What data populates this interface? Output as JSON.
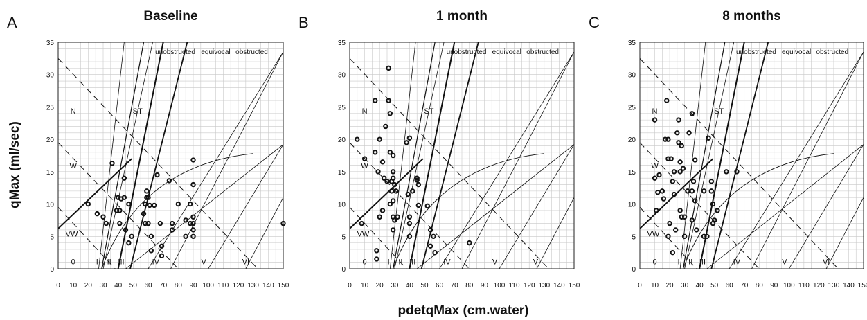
{
  "figure": {
    "ylabel": "qMax (ml/sec)",
    "xlabel": "pdetqMax (cm.water)"
  },
  "chart_data": [
    {
      "type": "scatter",
      "letter": "A",
      "title": "Baseline",
      "xlim": [
        0,
        150
      ],
      "ylim": [
        0,
        35
      ],
      "xticks": [
        0,
        10,
        20,
        30,
        40,
        50,
        60,
        70,
        80,
        90,
        100,
        110,
        120,
        130,
        140,
        150
      ],
      "yticks": [
        0,
        5,
        10,
        15,
        20,
        25,
        30,
        35
      ],
      "grid": true,
      "points": [
        [
          20,
          10
        ],
        [
          26,
          8.5
        ],
        [
          30,
          8
        ],
        [
          32,
          7
        ],
        [
          36,
          16.3
        ],
        [
          39,
          9
        ],
        [
          40,
          11
        ],
        [
          41,
          9
        ],
        [
          41,
          7
        ],
        [
          42,
          10.8
        ],
        [
          44,
          14
        ],
        [
          44,
          11
        ],
        [
          45,
          6
        ],
        [
          47,
          10
        ],
        [
          47,
          4
        ],
        [
          49,
          5
        ],
        [
          57,
          8.5
        ],
        [
          58,
          10
        ],
        [
          58,
          7
        ],
        [
          59,
          11
        ],
        [
          59,
          12
        ],
        [
          60,
          11
        ],
        [
          60,
          7
        ],
        [
          61,
          9.8
        ],
        [
          62,
          5
        ],
        [
          62,
          2.8
        ],
        [
          64,
          9.8
        ],
        [
          66,
          14.5
        ],
        [
          68,
          7
        ],
        [
          69,
          3.5
        ],
        [
          69,
          2
        ],
        [
          74,
          13.6
        ],
        [
          76,
          7
        ],
        [
          76,
          6
        ],
        [
          80,
          10
        ],
        [
          85,
          7.5
        ],
        [
          85,
          5
        ],
        [
          88,
          7
        ],
        [
          88,
          10
        ],
        [
          90,
          16.8
        ],
        [
          90,
          13
        ],
        [
          90,
          8
        ],
        [
          90,
          7
        ],
        [
          90,
          6
        ],
        [
          90,
          5
        ],
        [
          150,
          7
        ]
      ]
    },
    {
      "type": "scatter",
      "letter": "B",
      "title": "1 month",
      "xlim": [
        0,
        150
      ],
      "ylim": [
        0,
        35
      ],
      "xticks": [
        0,
        10,
        20,
        30,
        40,
        50,
        60,
        70,
        80,
        90,
        100,
        110,
        120,
        130,
        140,
        150
      ],
      "yticks": [
        0,
        5,
        10,
        15,
        20,
        25,
        30,
        35
      ],
      "grid": true,
      "points": [
        [
          5,
          20
        ],
        [
          8,
          7
        ],
        [
          10,
          17
        ],
        [
          17,
          26
        ],
        [
          17,
          18
        ],
        [
          18,
          2.8
        ],
        [
          18,
          1.5
        ],
        [
          19,
          15
        ],
        [
          20,
          20
        ],
        [
          20,
          8
        ],
        [
          22,
          16.5
        ],
        [
          22,
          9
        ],
        [
          23,
          14
        ],
        [
          24,
          22
        ],
        [
          25,
          13.5
        ],
        [
          26,
          31
        ],
        [
          26,
          26
        ],
        [
          27,
          24
        ],
        [
          27,
          18
        ],
        [
          27,
          10
        ],
        [
          28,
          13.5
        ],
        [
          28,
          12
        ],
        [
          29,
          17.5
        ],
        [
          29,
          15
        ],
        [
          29,
          14
        ],
        [
          29,
          10.5
        ],
        [
          29,
          8
        ],
        [
          29,
          6
        ],
        [
          30,
          13
        ],
        [
          30,
          7.5
        ],
        [
          31,
          12
        ],
        [
          32,
          8
        ],
        [
          38,
          19.5
        ],
        [
          39,
          11.5
        ],
        [
          40,
          20.2
        ],
        [
          40,
          8
        ],
        [
          40,
          7
        ],
        [
          40,
          5
        ],
        [
          42,
          12
        ],
        [
          45,
          14
        ],
        [
          45,
          13.7
        ],
        [
          46,
          13
        ],
        [
          46,
          9.8
        ],
        [
          52,
          9.7
        ],
        [
          54,
          6
        ],
        [
          54,
          3.5
        ],
        [
          56,
          5
        ],
        [
          57,
          2.5
        ],
        [
          80,
          4
        ]
      ]
    },
    {
      "type": "scatter",
      "letter": "C",
      "title": "8 months",
      "xlim": [
        0,
        150
      ],
      "ylim": [
        0,
        35
      ],
      "xticks": [
        0,
        10,
        20,
        30,
        40,
        50,
        60,
        70,
        80,
        90,
        100,
        110,
        120,
        130,
        140,
        150
      ],
      "yticks": [
        0,
        5,
        10,
        15,
        20,
        25,
        30,
        35
      ],
      "grid": true,
      "points": [
        [
          10,
          23
        ],
        [
          10,
          14
        ],
        [
          11,
          9
        ],
        [
          12,
          11.8
        ],
        [
          13,
          14.5
        ],
        [
          15,
          12
        ],
        [
          16,
          10.8
        ],
        [
          17,
          20
        ],
        [
          18,
          26
        ],
        [
          19,
          20
        ],
        [
          19,
          17
        ],
        [
          19,
          5
        ],
        [
          20,
          7
        ],
        [
          21,
          17
        ],
        [
          22,
          2.5
        ],
        [
          22,
          13.5
        ],
        [
          23,
          15
        ],
        [
          23,
          11.5
        ],
        [
          24,
          6
        ],
        [
          25,
          21
        ],
        [
          26,
          23
        ],
        [
          26,
          19.5
        ],
        [
          27,
          16.5
        ],
        [
          27,
          15
        ],
        [
          27,
          9
        ],
        [
          28,
          19
        ],
        [
          28,
          8
        ],
        [
          29,
          15.5
        ],
        [
          30,
          8
        ],
        [
          30,
          5
        ],
        [
          32,
          12
        ],
        [
          33,
          21
        ],
        [
          35,
          24
        ],
        [
          35,
          12
        ],
        [
          35,
          7.5
        ],
        [
          36,
          13.5
        ],
        [
          37,
          16.8
        ],
        [
          37,
          10.5
        ],
        [
          38,
          6
        ],
        [
          43,
          12
        ],
        [
          43,
          5
        ],
        [
          45,
          5
        ],
        [
          46,
          20.2
        ],
        [
          48,
          13.5
        ],
        [
          48,
          12
        ],
        [
          49,
          10
        ],
        [
          49,
          7
        ],
        [
          50,
          7.5
        ],
        [
          52,
          9
        ],
        [
          58,
          15
        ],
        [
          65,
          15
        ]
      ]
    }
  ],
  "overlay": {
    "regions": [
      "unobstructed",
      "equivocal",
      "obstructed"
    ],
    "zones_left": [
      "N",
      "W",
      "VW"
    ],
    "zone_st": "ST",
    "zones_bottom": [
      "0",
      "I",
      "II",
      "III",
      "IV",
      "V",
      "VI"
    ]
  }
}
